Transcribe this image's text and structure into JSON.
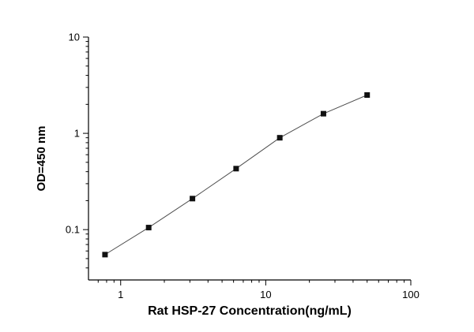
{
  "chart_data": {
    "type": "line",
    "title": "",
    "xlabel": "Rat HSP-27  Concentration(ng/mL)",
    "ylabel": "OD=450 nm",
    "xscale": "log",
    "yscale": "log",
    "xlim": [
      0.6,
      100
    ],
    "ylim": [
      0.03,
      10
    ],
    "x": [
      0.78,
      1.56,
      3.125,
      6.25,
      12.5,
      25,
      50
    ],
    "y": [
      0.055,
      0.105,
      0.21,
      0.43,
      0.9,
      1.6,
      2.5
    ],
    "x_tick_values": [
      1,
      10,
      100
    ],
    "x_tick_labels": [
      "1",
      "10",
      "100"
    ],
    "y_tick_values": [
      0.1,
      1,
      10
    ],
    "y_tick_labels": [
      "0.1",
      "1",
      "10"
    ],
    "marker": "square",
    "marker_color": "#111111",
    "line_color": "#4d4d4d",
    "axis_color": "#000000",
    "grid": false,
    "legend": false,
    "background": "#ffffff"
  }
}
